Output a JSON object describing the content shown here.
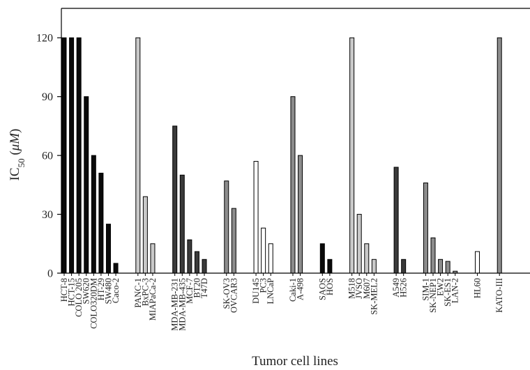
{
  "chart_data": {
    "type": "bar",
    "title": "",
    "ylabel": {
      "base": "IC",
      "sub": "50",
      "unit_open": " (",
      "unit": "μM",
      "unit_close": ")"
    },
    "xlabel": "Tumor cell lines",
    "ylim": [
      0,
      135
    ],
    "yticks": [
      0,
      30,
      60,
      90,
      120
    ],
    "grid": false,
    "legend": "none",
    "colors": {
      "black": "#0a0a0a",
      "light": "#c9c9c9",
      "dark": "#3a3a3a",
      "mid": "#8c8c8c",
      "white": "#ffffff"
    },
    "groups": [
      {
        "color": "black",
        "categories": [
          "HCT-8",
          "HCT-15",
          "COLO 205",
          "SW620",
          "COLO320DM",
          "HT-29",
          "SW480",
          "Caco-2"
        ],
        "values": [
          120,
          120,
          120,
          90,
          60,
          51,
          25,
          5
        ]
      },
      {
        "color": "light",
        "categories": [
          "PANC-1",
          "BxPC-3",
          "MIAPaCa-2"
        ],
        "values": [
          120,
          39,
          15
        ]
      },
      {
        "color": "dark",
        "categories": [
          "MDA-MB-231",
          "MDA-MB-435",
          "MCF-7",
          "BT20",
          "T47D"
        ],
        "values": [
          75,
          50,
          17,
          11,
          7
        ]
      },
      {
        "color": "mid",
        "categories": [
          "SK-OV3",
          "OVCAR3"
        ],
        "values": [
          47,
          33
        ]
      },
      {
        "color": "white",
        "categories": [
          "DU145",
          "PC3",
          "LNCaP"
        ],
        "values": [
          57,
          23,
          15
        ]
      },
      {
        "color": "mid",
        "categories": [
          "Caki-1",
          "A-498"
        ],
        "values": [
          90,
          60
        ]
      },
      {
        "color": "black",
        "categories": [
          "SAOS",
          "HOS"
        ],
        "values": [
          15,
          7
        ]
      },
      {
        "color": "light",
        "categories": [
          "M518",
          "JVSO",
          "M607",
          "SK-MEL2"
        ],
        "values": [
          120,
          30,
          15,
          7
        ]
      },
      {
        "color": "dark",
        "categories": [
          "A549",
          "H526"
        ],
        "values": [
          54,
          7
        ]
      },
      {
        "color": "mid",
        "categories": [
          "SIM-1",
          "SK-NEP1",
          "EW2",
          "SK-ES1",
          "LAN-2"
        ],
        "values": [
          46,
          18,
          7,
          6,
          1
        ]
      },
      {
        "color": "white",
        "categories": [
          "HL60"
        ],
        "values": [
          11
        ]
      },
      {
        "color": "mid",
        "categories": [
          "KATO-III"
        ],
        "values": [
          120
        ]
      }
    ]
  }
}
